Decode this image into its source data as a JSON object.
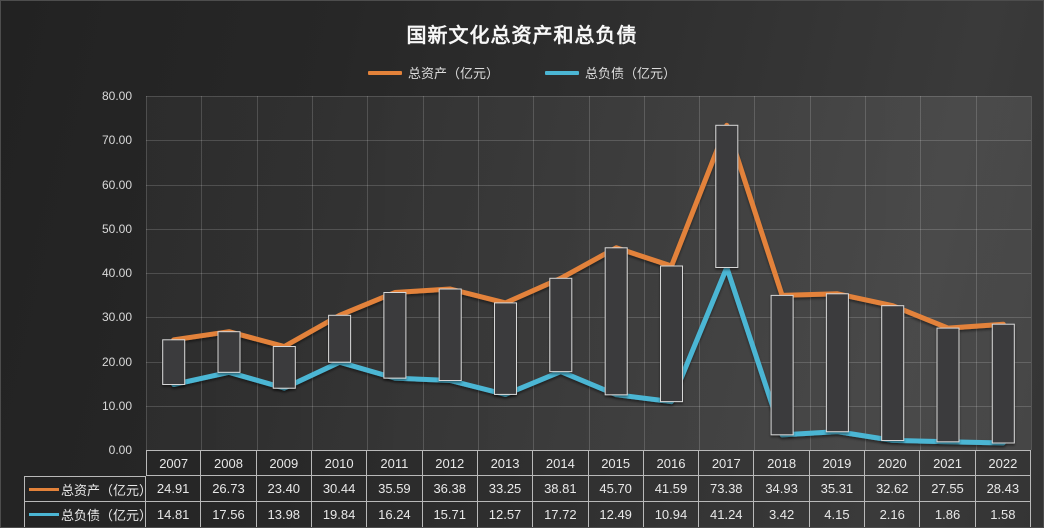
{
  "title": "国新文化总资产和总负债",
  "chart_data": {
    "type": "line",
    "title": "国新文化总资产和总负债",
    "categories": [
      "2007",
      "2008",
      "2009",
      "2010",
      "2011",
      "2012",
      "2013",
      "2014",
      "2015",
      "2016",
      "2017",
      "2018",
      "2019",
      "2020",
      "2021",
      "2022"
    ],
    "series": [
      {
        "name": "总资产（亿元）",
        "color": "#E3823A",
        "values": [
          24.91,
          26.73,
          23.4,
          30.44,
          35.59,
          36.38,
          33.25,
          38.81,
          45.7,
          41.59,
          73.38,
          34.93,
          35.31,
          32.62,
          27.55,
          28.43
        ]
      },
      {
        "name": "总负债（亿元）",
        "color": "#4BB6D4",
        "values": [
          14.81,
          17.56,
          13.98,
          19.84,
          16.24,
          15.71,
          12.57,
          17.72,
          12.49,
          10.94,
          41.24,
          3.42,
          4.15,
          2.16,
          1.86,
          1.58
        ]
      }
    ],
    "ylim": [
      0,
      80
    ],
    "y_tick_labels": [
      "80.00",
      "70.00",
      "60.00",
      "50.00",
      "40.00",
      "30.00",
      "20.00",
      "10.00",
      "0.00"
    ],
    "grid": "both",
    "high_low_bars": true,
    "legend_position": "top",
    "data_table_shown": true,
    "colors": {
      "bar_fill": "#3A3A3C",
      "bar_border": "#D8D8D8",
      "gridline": "rgba(255,255,255,0.16)",
      "table_border": "#b9b9b9",
      "text": "#e8e8e8"
    }
  }
}
